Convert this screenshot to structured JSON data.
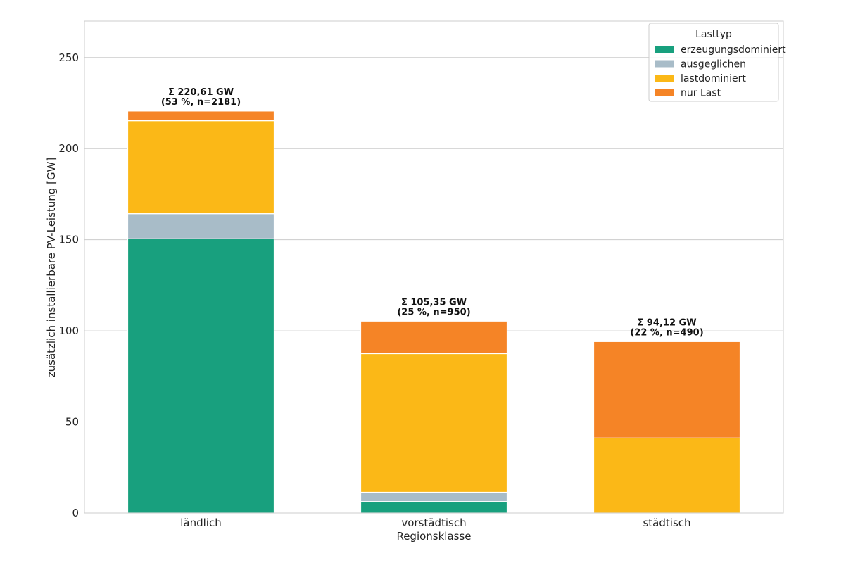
{
  "chart_data": {
    "type": "bar",
    "stacked": true,
    "categories": [
      "ländlich",
      "vorstädtisch",
      "städtisch"
    ],
    "series": [
      {
        "name": "erzeugungsdominiert",
        "color": "#18A07E",
        "values": [
          150.5,
          6.3,
          0.0
        ]
      },
      {
        "name": "ausgeglichen",
        "color": "#A8BCC8",
        "values": [
          13.8,
          5.1,
          0.0
        ]
      },
      {
        "name": "lastdominiert",
        "color": "#FBB817",
        "values": [
          51.0,
          76.1,
          41.2
        ]
      },
      {
        "name": "nur Last",
        "color": "#F58426",
        "values": [
          5.31,
          17.85,
          52.92
        ]
      }
    ],
    "totals_annotations": [
      {
        "line1": "Σ 220,61 GW",
        "line2": "(53 %, n=2181)",
        "total": 220.61
      },
      {
        "line1": "Σ 105,35 GW",
        "line2": "(25 %, n=950)",
        "total": 105.35
      },
      {
        "line1": "Σ 94,12 GW",
        "line2": "(22 %, n=490)",
        "total": 94.12
      }
    ],
    "xlabel": "Regionsklasse",
    "ylabel": "zusätzlich installierbare PV-Leistung [GW]",
    "ylim": [
      0,
      270
    ],
    "yticks": [
      0,
      50,
      100,
      150,
      200,
      250
    ],
    "grid": true,
    "legend": {
      "title": "Lasttyp",
      "placement": "top-right"
    }
  }
}
